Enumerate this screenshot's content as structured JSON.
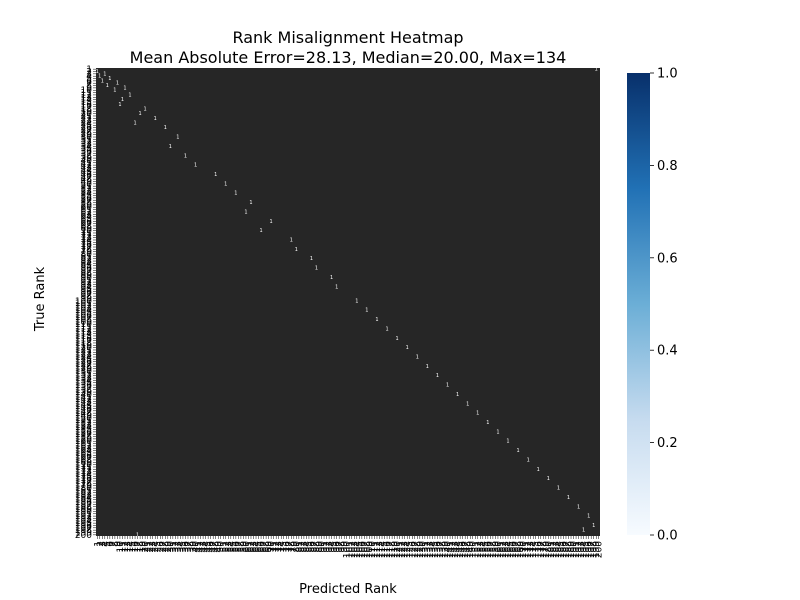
{
  "chart_data": {
    "type": "heatmap",
    "title": "Rank Misalignment Heatmap",
    "subtitle": "Mean Absolute Error=28.13, Median=20.00, Max=134",
    "xlabel": "Predicted Rank",
    "ylabel": "True Rank",
    "n_ranks": 200,
    "background_value": 0.0,
    "cell_annotation_value": 1,
    "colorbar": {
      "colormap": "Blues",
      "range": [
        0.0,
        1.0
      ],
      "ticks": [
        "0.0",
        "0.2",
        "0.4",
        "0.6",
        "0.8",
        "1.0"
      ],
      "colors": {
        "low": "#f7fbff",
        "mid": "#6baed6",
        "high": "#08306b"
      }
    },
    "matched_cells_approx": [
      [
        1,
        199
      ],
      [
        2,
        1
      ],
      [
        3,
        4
      ],
      [
        4,
        2
      ],
      [
        5,
        6
      ],
      [
        6,
        3
      ],
      [
        7,
        9
      ],
      [
        8,
        5
      ],
      [
        9,
        12
      ],
      [
        10,
        8
      ],
      [
        12,
        14
      ],
      [
        14,
        11
      ],
      [
        16,
        10
      ],
      [
        18,
        20
      ],
      [
        20,
        18
      ],
      [
        22,
        24
      ],
      [
        24,
        16
      ],
      [
        26,
        28
      ],
      [
        30,
        33
      ],
      [
        34,
        30
      ],
      [
        38,
        36
      ],
      [
        42,
        40
      ],
      [
        46,
        48
      ],
      [
        50,
        52
      ],
      [
        54,
        56
      ],
      [
        58,
        62
      ],
      [
        62,
        60
      ],
      [
        66,
        70
      ],
      [
        70,
        66
      ],
      [
        74,
        78
      ],
      [
        78,
        80
      ],
      [
        82,
        86
      ],
      [
        86,
        88
      ],
      [
        90,
        94
      ],
      [
        94,
        96
      ],
      [
        100,
        104
      ],
      [
        104,
        108
      ],
      [
        108,
        112
      ],
      [
        112,
        116
      ],
      [
        116,
        120
      ],
      [
        120,
        124
      ],
      [
        124,
        128
      ],
      [
        128,
        132
      ],
      [
        132,
        136
      ],
      [
        136,
        140
      ],
      [
        140,
        144
      ],
      [
        144,
        148
      ],
      [
        148,
        152
      ],
      [
        152,
        156
      ],
      [
        156,
        160
      ],
      [
        160,
        164
      ],
      [
        164,
        168
      ],
      [
        168,
        172
      ],
      [
        172,
        176
      ],
      [
        176,
        180
      ],
      [
        180,
        184
      ],
      [
        184,
        188
      ],
      [
        188,
        192
      ],
      [
        192,
        196
      ],
      [
        196,
        198
      ],
      [
        198,
        194
      ],
      [
        200,
        17
      ]
    ]
  }
}
